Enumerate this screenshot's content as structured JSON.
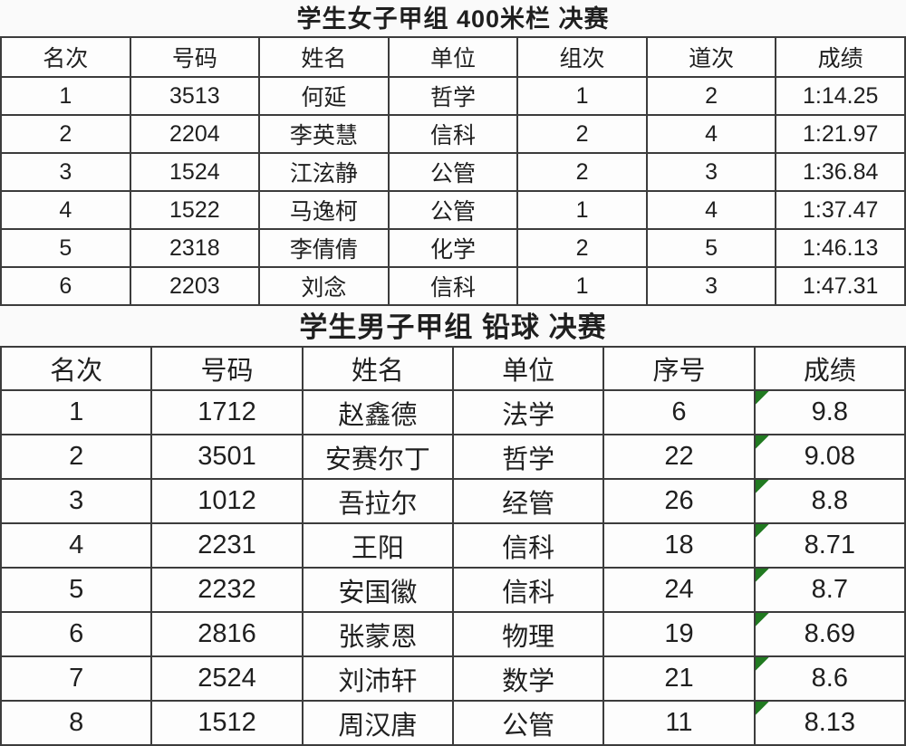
{
  "colors": {
    "page_bg": "#fafafa",
    "cell_bg": "#fdfdfd",
    "border": "#3c3c3c",
    "text": "#1f1f1f",
    "flag_green": "#217a21"
  },
  "tables": [
    {
      "title": "学生女子甲组 400米栏 决赛",
      "headers": [
        "名次",
        "号码",
        "姓名",
        "单位",
        "组次",
        "道次",
        "成绩"
      ],
      "rows": [
        [
          "1",
          "3513",
          "何延",
          "哲学",
          "1",
          "2",
          "1:14.25"
        ],
        [
          "2",
          "2204",
          "李英慧",
          "信科",
          "2",
          "4",
          "1:21.97"
        ],
        [
          "3",
          "1524",
          "江泫静",
          "公管",
          "2",
          "3",
          "1:36.84"
        ],
        [
          "4",
          "1522",
          "马逸柯",
          "公管",
          "1",
          "4",
          "1:37.47"
        ],
        [
          "5",
          "2318",
          "李倩倩",
          "化学",
          "2",
          "5",
          "1:46.13"
        ],
        [
          "6",
          "2203",
          "刘念",
          "信科",
          "1",
          "3",
          "1:47.31"
        ]
      ]
    },
    {
      "title": "学生男子甲组 铅球 决赛",
      "headers": [
        "名次",
        "号码",
        "姓名",
        "单位",
        "序号",
        "成绩"
      ],
      "flag_last_column": true,
      "rows": [
        [
          "1",
          "1712",
          "赵鑫德",
          "法学",
          "6",
          "9.8"
        ],
        [
          "2",
          "3501",
          "安赛尔丁",
          "哲学",
          "22",
          "9.08"
        ],
        [
          "3",
          "1012",
          "吾拉尔",
          "经管",
          "26",
          "8.8"
        ],
        [
          "4",
          "2231",
          "王阳",
          "信科",
          "18",
          "8.71"
        ],
        [
          "5",
          "2232",
          "安国徽",
          "信科",
          "24",
          "8.7"
        ],
        [
          "6",
          "2816",
          "张蒙恩",
          "物理",
          "19",
          "8.69"
        ],
        [
          "7",
          "2524",
          "刘沛轩",
          "数学",
          "21",
          "8.6"
        ],
        [
          "8",
          "1512",
          "周汉唐",
          "公管",
          "11",
          "8.13"
        ]
      ]
    }
  ]
}
